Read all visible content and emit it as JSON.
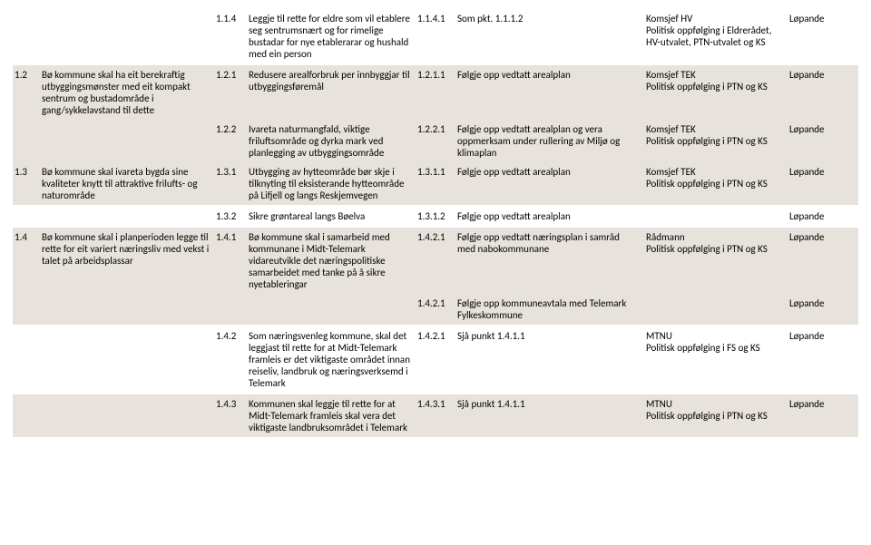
{
  "rows": [
    {
      "stripe": false,
      "c1": "",
      "c2": "",
      "c3": "1.1.4",
      "c4": "Leggje til rette for eldre som vil etablere seg sentrumsnært og for rimelige bustadar for nye etablerarar og hushald med ein person",
      "c5": "1.1.4.1",
      "c6": "Som pkt. 1.1.1.2",
      "c7": "Komsjef HV\nPolitisk oppfølging i Eldrerådet, HV-utvalet, PTN-utvalet og KS",
      "c8": "Løpande"
    },
    {
      "stripe": true,
      "c1": "1.2",
      "c2": "Bø kommune skal ha eit berekraftig utbyggingsmønster med eit kompakt sentrum og bustadområde i gang/sykkelavstand til dette",
      "c3": "1.2.1",
      "c4": "Redusere arealforbruk per innbyggjar til utbyggingsføremål",
      "c5": "1.2.1.1",
      "c6": "Følgje opp vedtatt arealplan",
      "c7": "Komsjef TEK\nPolitisk oppfølging i PTN og KS",
      "c8": "Løpande"
    },
    {
      "stripe": true,
      "c1": "",
      "c2": "",
      "c3": "1.2.2",
      "c4": "Ivareta naturmangfald, viktige friluftsområde og dyrka mark ved planlegging av utbyggingsområde",
      "c5": "1.2.2.1",
      "c6": "Følgje opp vedtatt arealplan og vera oppmerksam under rullering av Miljø og klimaplan",
      "c7": "Komsjef TEK\nPolitisk oppfølging i PTN og KS",
      "c8": "Løpande"
    },
    {
      "stripe": true,
      "c1": "1.3",
      "c2": "Bø kommune skal ivareta bygda sine kvaliteter knytt til attraktive frilufts- og naturområde",
      "c3": "1.3.1",
      "c4": "Utbygging av hytteområde bør skje i tilknyting til eksisterande hytteområde på Lifjell og langs Reskjemvegen",
      "c5": "1.3.1.1",
      "c6": "Følgje opp vedtatt arealplan",
      "c7": "Komsjef TEK\nPolitisk oppfølging i PTN og KS",
      "c8": "Løpande"
    },
    {
      "stripe": false,
      "c1": "",
      "c2": "",
      "c3": "1.3.2",
      "c4": "Sikre grøntareal langs Bøelva",
      "c5": "1.3.1.2",
      "c6": "Følgje opp vedtatt arealplan",
      "c7": "",
      "c8": "Løpande"
    },
    {
      "stripe": true,
      "c1": "1.4",
      "c2": "Bø kommune skal i planperioden legge til rette for eit variert næringsliv med vekst i talet på arbeidsplassar",
      "c3": "1.4.1",
      "c4": "Bø kommune skal i samarbeid med kommunane i Midt-Telemark vidareutvikle det næringspolitiske samarbeidet med tanke på å sikre nyetableringar",
      "c5": "1.4.2.1",
      "c6": "Følgje opp vedtatt næringsplan i samråd med nabokommunane",
      "c7": "Rådmann\nPolitisk oppfølging i PTN og KS",
      "c8": "Løpande"
    },
    {
      "stripe": true,
      "c1": "",
      "c2": "",
      "c3": "",
      "c4": "",
      "c5": "1.4.2.1",
      "c6": "Følgje opp kommuneavtala med Telemark Fylkeskommune",
      "c7": "",
      "c8": "Løpande"
    },
    {
      "stripe": false,
      "c1": "",
      "c2": "",
      "c3": "1.4.2",
      "c4": "Som næringsvenleg kommune, skal det leggjast til rette for at Midt-Telemark framleis er det viktigaste området innan reiseliv, landbruk og næringsverksemd i Telemark",
      "c5": "1.4.2.1",
      "c6": "Sjå punkt 1.4.1.1",
      "c7": "MTNU\nPolitisk oppfølging i FS og KS",
      "c8": "Løpande"
    },
    {
      "stripe": true,
      "c1": "",
      "c2": "",
      "c3": "1.4.3",
      "c4": "Kommunen skal leggje til rette for at Midt-Telemark framleis skal vera det viktigaste landbruksområdet i Telemark",
      "c5": "1.4.3.1",
      "c6": "Sjå punkt 1.4.1.1",
      "c7": "MTNU\nPolitisk oppfølging i PTN og KS",
      "c8": "Løpande"
    }
  ]
}
